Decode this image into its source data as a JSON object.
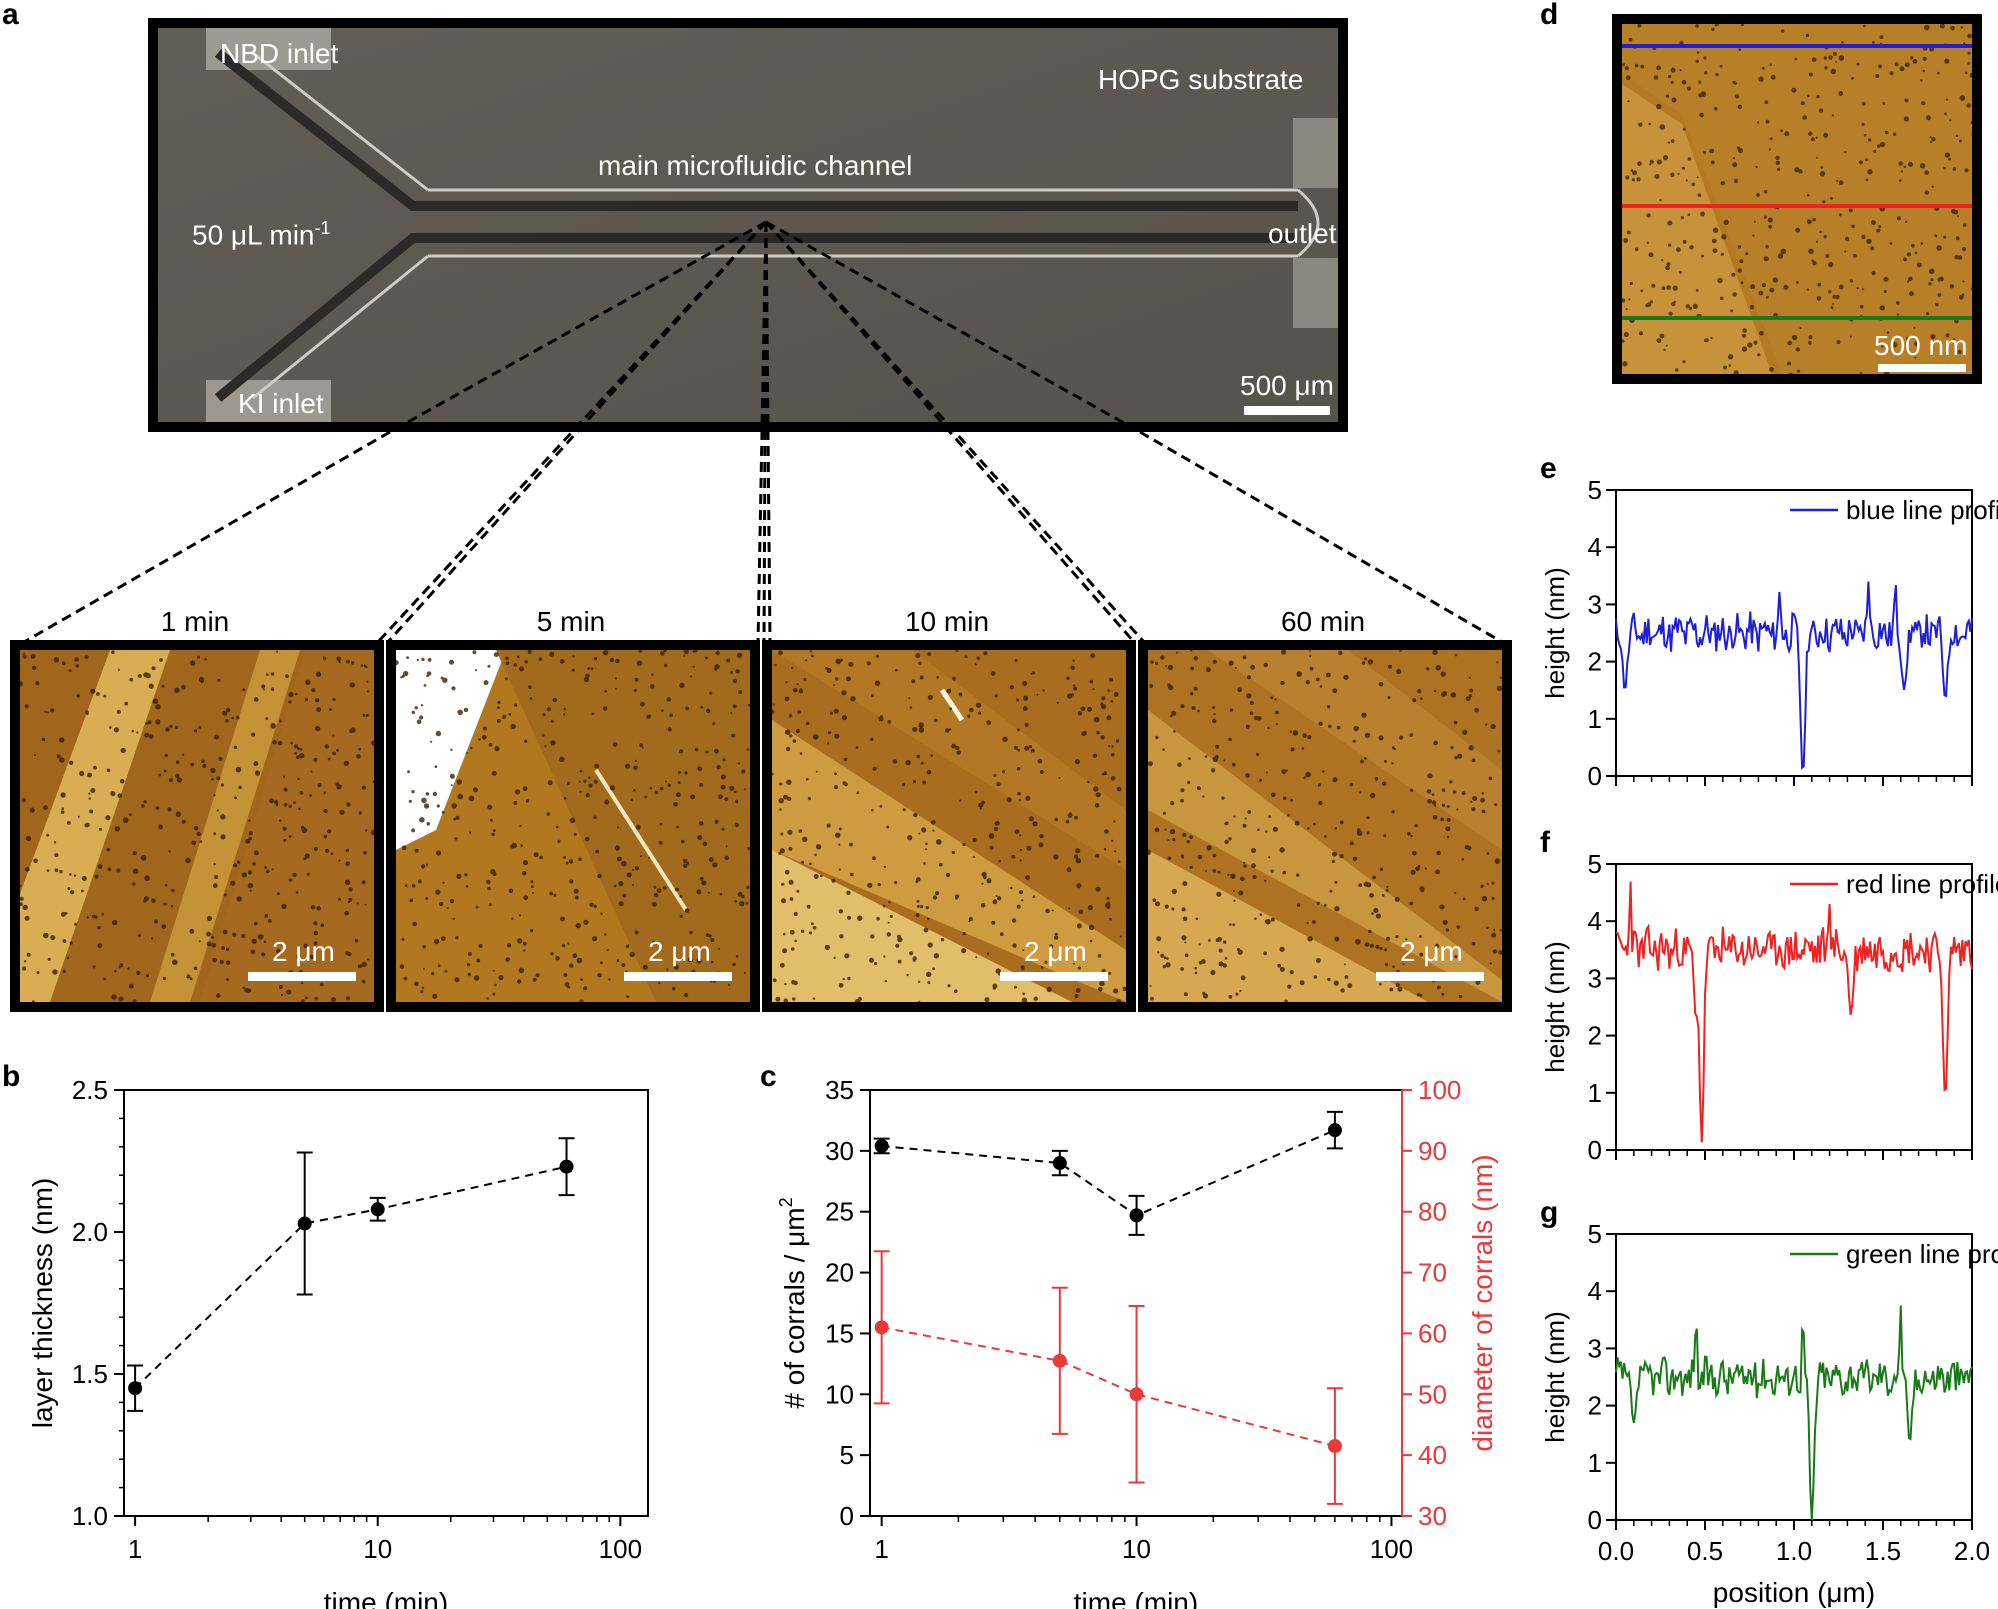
{
  "panels": {
    "a": "a",
    "b": "b",
    "c": "c",
    "d": "d",
    "e": "e",
    "f": "f",
    "g": "g"
  },
  "micrograph": {
    "nbd_inlet": "NBD inlet",
    "ki_inlet": "KI inlet",
    "hopg": "HOPG substrate",
    "channel": "main microfluidic channel",
    "flow": "50 μL min",
    "flow_exp": "-1",
    "outlet": "outlet",
    "scale": "500 μm"
  },
  "afm_images": [
    {
      "title": "1 min",
      "scale": "2 μm"
    },
    {
      "title": "5 min",
      "scale": "2 μm"
    },
    {
      "title": "10 min",
      "scale": "2 μm"
    },
    {
      "title": "60 min",
      "scale": "2 μm"
    }
  ],
  "afm_d": {
    "scale": "500 nm"
  },
  "colors": {
    "blue": "#1f1fd6",
    "red": "#ee2222",
    "green": "#1a7a1a",
    "red_axis": "#e83a3a"
  },
  "chart_data": [
    {
      "id": "b",
      "type": "scatter",
      "xlabel": "time (min)",
      "ylabel": "layer thickness (nm)",
      "xscale": "log",
      "xlim": [
        0.9,
        130
      ],
      "ylim": [
        1.0,
        2.5
      ],
      "xticks": [
        {
          "v": 1,
          "label": "1"
        },
        {
          "v": 10,
          "label": "10"
        },
        {
          "v": 100,
          "label": "100"
        }
      ],
      "yticks": [
        {
          "v": 1.0,
          "label": "1.0"
        },
        {
          "v": 1.5,
          "label": "1.5"
        },
        {
          "v": 2.0,
          "label": "2.0"
        },
        {
          "v": 2.5,
          "label": "2.5"
        }
      ],
      "series": [
        {
          "name": "layer thickness",
          "x": [
            1,
            5,
            10,
            60
          ],
          "y": [
            1.45,
            2.03,
            2.08,
            2.23
          ],
          "err": [
            0.08,
            0.25,
            0.04,
            0.1
          ]
        }
      ]
    },
    {
      "id": "c",
      "type": "scatter",
      "xlabel": "time (min)",
      "ylabel": "# of corrals / μm",
      "ylabel_exp": "2",
      "y2label": "diameter of corrals (nm)",
      "xscale": "log",
      "xlim": [
        0.9,
        110
      ],
      "ylim": [
        0,
        35
      ],
      "y2lim": [
        30,
        100
      ],
      "xticks": [
        {
          "v": 1,
          "label": "1"
        },
        {
          "v": 10,
          "label": "10"
        },
        {
          "v": 100,
          "label": "100"
        }
      ],
      "yticks": [
        {
          "v": 0,
          "label": "0"
        },
        {
          "v": 5,
          "label": "5"
        },
        {
          "v": 10,
          "label": "10"
        },
        {
          "v": 15,
          "label": "15"
        },
        {
          "v": 20,
          "label": "20"
        },
        {
          "v": 25,
          "label": "25"
        },
        {
          "v": 30,
          "label": "30"
        },
        {
          "v": 35,
          "label": "35"
        }
      ],
      "y2ticks": [
        {
          "v": 30,
          "label": "30"
        },
        {
          "v": 40,
          "label": "40"
        },
        {
          "v": 50,
          "label": "50"
        },
        {
          "v": 60,
          "label": "60"
        },
        {
          "v": 70,
          "label": "70"
        },
        {
          "v": 80,
          "label": "80"
        },
        {
          "v": 90,
          "label": "90"
        },
        {
          "v": 100,
          "label": "100"
        }
      ],
      "series": [
        {
          "name": "# of corrals",
          "axis": "left",
          "x": [
            1,
            5,
            10,
            60
          ],
          "y": [
            30.4,
            29.0,
            24.7,
            31.7
          ],
          "err": [
            0.6,
            1.0,
            1.6,
            1.5
          ]
        },
        {
          "name": "diameter of corrals",
          "axis": "right",
          "x": [
            1,
            5,
            10,
            60
          ],
          "y": [
            61,
            55.5,
            50,
            41.5
          ],
          "err": [
            12.5,
            12,
            14.5,
            9.5
          ]
        }
      ]
    },
    {
      "id": "e",
      "type": "line",
      "xlim": [
        0,
        2
      ],
      "ylim": [
        0,
        5
      ],
      "ylabel": "height (nm)",
      "legend": "blue line profile",
      "color": "#1f1fd6",
      "yticks": [
        {
          "v": 0,
          "label": "0"
        },
        {
          "v": 1,
          "label": "1"
        },
        {
          "v": 2,
          "label": "2"
        },
        {
          "v": 3,
          "label": "3"
        },
        {
          "v": 4,
          "label": "4"
        },
        {
          "v": 5,
          "label": "5"
        }
      ],
      "base": 2.5,
      "amp": 0.3,
      "dips": [
        {
          "x": 0.05,
          "y": 1.5
        },
        {
          "x": 1.05,
          "y": 0.0
        },
        {
          "x": 1.62,
          "y": 1.5
        },
        {
          "x": 1.85,
          "y": 1.35
        }
      ],
      "peaks": [
        {
          "x": 1.42,
          "y": 3.45
        },
        {
          "x": 1.57,
          "y": 3.4
        },
        {
          "x": 0.92,
          "y": 3.25
        }
      ]
    },
    {
      "id": "f",
      "type": "line",
      "xlim": [
        0,
        2
      ],
      "ylim": [
        0,
        5
      ],
      "ylabel": "height (nm)",
      "legend": "red line profile",
      "color": "#ee2222",
      "yticks": [
        {
          "v": 0,
          "label": "0"
        },
        {
          "v": 1,
          "label": "1"
        },
        {
          "v": 2,
          "label": "2"
        },
        {
          "v": 3,
          "label": "3"
        },
        {
          "v": 4,
          "label": "4"
        },
        {
          "v": 5,
          "label": "5"
        }
      ],
      "base": 3.5,
      "amp": 0.35,
      "dips": [
        {
          "x": 0.48,
          "y": 0.0
        },
        {
          "x": 1.85,
          "y": 0.9
        },
        {
          "x": 0.45,
          "y": 2.3
        },
        {
          "x": 1.32,
          "y": 2.35
        }
      ],
      "peaks": [
        {
          "x": 0.08,
          "y": 4.75
        },
        {
          "x": 1.2,
          "y": 4.3
        }
      ]
    },
    {
      "id": "g",
      "type": "line",
      "xlim": [
        0,
        2
      ],
      "ylim": [
        0,
        5
      ],
      "xlabel": "position (μm)",
      "ylabel": "height (nm)",
      "legend": "green line profile",
      "color": "#1a7a1a",
      "xticks": [
        {
          "v": 0,
          "label": "0.0"
        },
        {
          "v": 0.5,
          "label": "0.5"
        },
        {
          "v": 1.0,
          "label": "1.0"
        },
        {
          "v": 1.5,
          "label": "1.5"
        },
        {
          "v": 2.0,
          "label": "2.0"
        }
      ],
      "yticks": [
        {
          "v": 0,
          "label": "0"
        },
        {
          "v": 1,
          "label": "1"
        },
        {
          "v": 2,
          "label": "2"
        },
        {
          "v": 3,
          "label": "3"
        },
        {
          "v": 4,
          "label": "4"
        },
        {
          "v": 5,
          "label": "5"
        }
      ],
      "base": 2.5,
      "amp": 0.3,
      "dips": [
        {
          "x": 1.1,
          "y": 0.0
        },
        {
          "x": 1.65,
          "y": 1.35
        },
        {
          "x": 0.1,
          "y": 1.7
        }
      ],
      "peaks": [
        {
          "x": 0.45,
          "y": 3.6
        },
        {
          "x": 1.6,
          "y": 3.75
        },
        {
          "x": 1.05,
          "y": 3.6
        }
      ]
    }
  ]
}
